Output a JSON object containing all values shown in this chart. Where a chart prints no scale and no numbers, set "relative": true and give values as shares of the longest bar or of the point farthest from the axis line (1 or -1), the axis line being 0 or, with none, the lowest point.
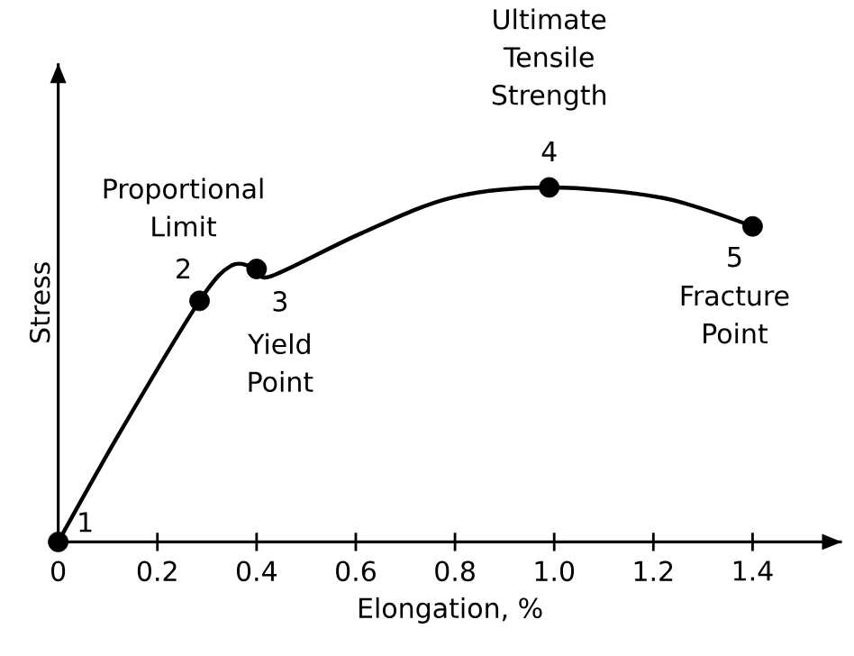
{
  "chart_data": {
    "type": "line",
    "relative": true,
    "xlabel": "Elongation, %",
    "ylabel": "Stress",
    "xlim": [
      0,
      1.58
    ],
    "xticks": [
      0,
      0.2,
      0.4,
      0.6,
      0.8,
      {
        "value": 1.0,
        "label": "1.0"
      },
      1.2,
      1.4
    ],
    "series": [
      {
        "color": "#000000",
        "x": [
          0,
          0.125,
          0.285,
          0.35,
          0.4,
          0.43,
          0.61,
          0.79,
          0.99,
          1.22,
          1.4
        ],
        "values": [
          0,
          0.31,
          0.68,
          0.78,
          0.77,
          0.75,
          0.87,
          0.97,
          1,
          0.97,
          0.89
        ]
      },
      {
        "type": "scatter",
        "color": "#000000",
        "x": [
          0,
          0.285,
          0.4,
          0.99,
          1.4
        ],
        "values": [
          0,
          0.68,
          0.77,
          1,
          0.89
        ]
      }
    ],
    "annotations": [
      {
        "text": "1",
        "x": 0,
        "y": 0
      },
      {
        "text": "Proportional Limit",
        "x": 0.285,
        "y": 0.68
      },
      {
        "text": "2",
        "x": 0.285,
        "y": 0.68
      },
      {
        "text": "3",
        "x": 0.4,
        "y": 0.77
      },
      {
        "text": "Yield Point",
        "x": 0.4,
        "y": 0.77
      },
      {
        "text": "Ultimate Tensile Strength",
        "x": 0.99,
        "y": 1
      },
      {
        "text": "4",
        "x": 0.99,
        "y": 1
      },
      {
        "text": "5",
        "x": 1.4,
        "y": 0.89
      },
      {
        "text": "Fracture Point",
        "x": 1.4,
        "y": 0.89
      }
    ]
  }
}
